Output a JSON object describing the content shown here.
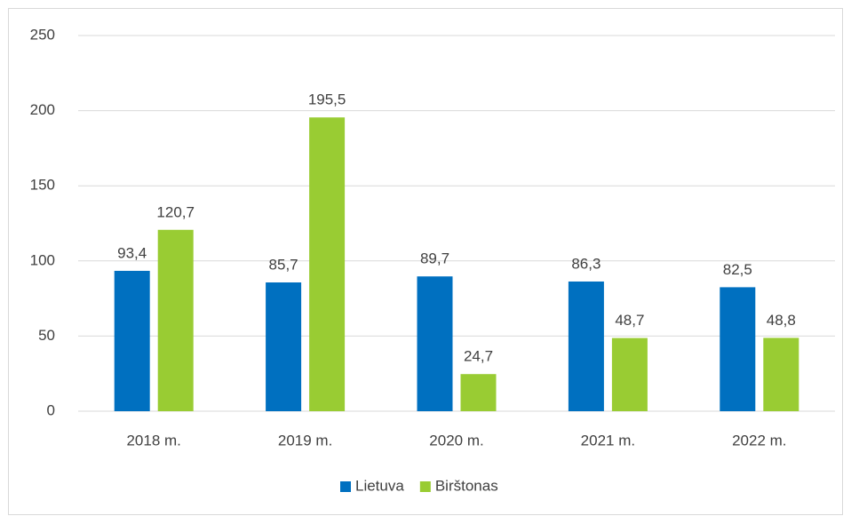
{
  "chart_data": {
    "type": "bar",
    "categories": [
      "2018 m.",
      "2019 m.",
      "2020 m.",
      "2021 m.",
      "2022 m."
    ],
    "series": [
      {
        "name": "Lietuva",
        "color": "#0070c0",
        "values": [
          93.4,
          85.7,
          89.7,
          86.3,
          82.5
        ],
        "value_labels": [
          "93,4",
          "85,7",
          "89,7",
          "86,3",
          "82,5"
        ]
      },
      {
        "name": "Birštonas",
        "color": "#99cc33",
        "values": [
          120.7,
          195.5,
          24.7,
          48.7,
          48.8
        ],
        "value_labels": [
          "120,7",
          "195,5",
          "24,7",
          "48,7",
          "48,8"
        ]
      }
    ],
    "ylim": [
      0,
      250
    ],
    "yticks": [
      0,
      50,
      100,
      150,
      200,
      250
    ],
    "grid": true,
    "legend": "bottom"
  }
}
